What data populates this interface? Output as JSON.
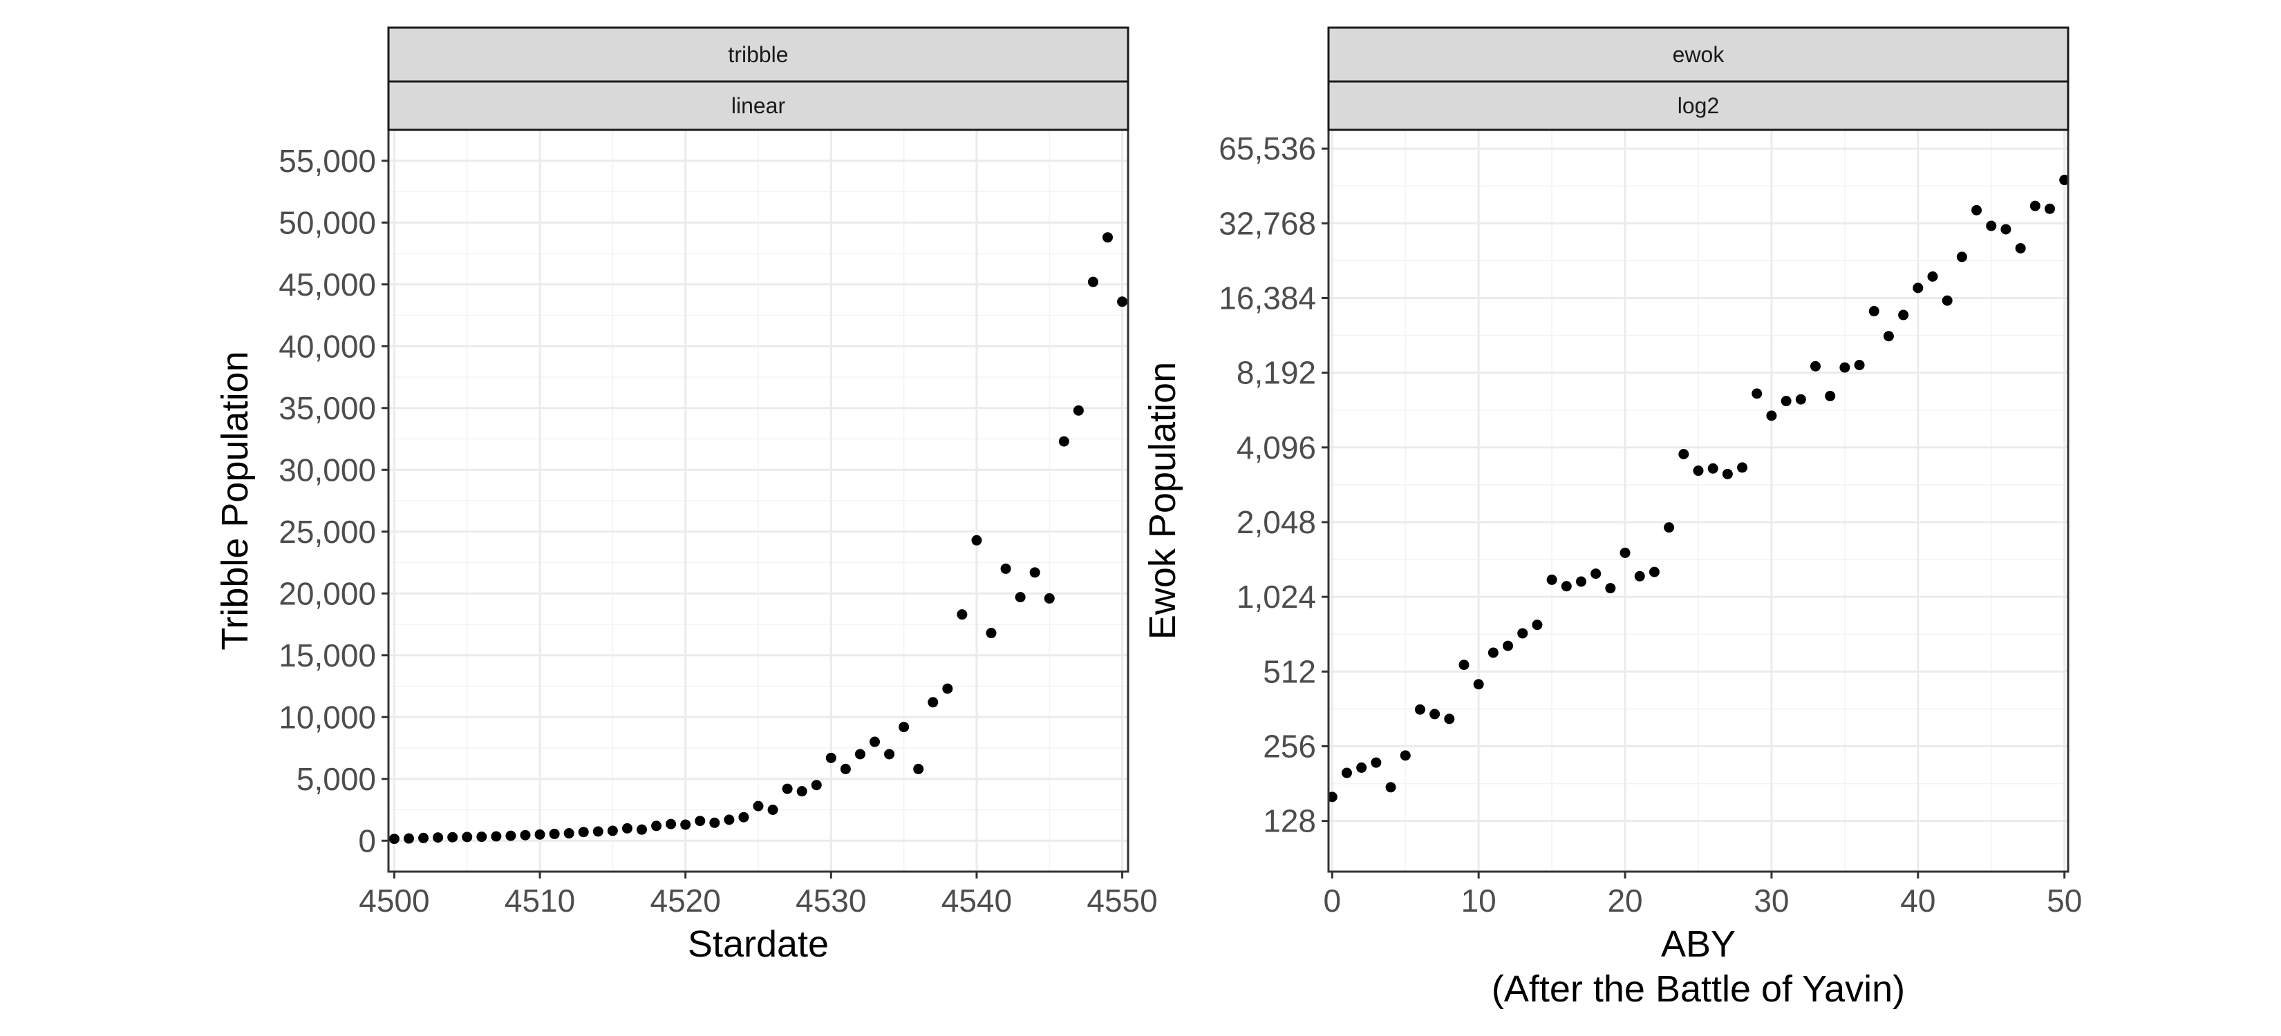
{
  "chart_data": [
    {
      "type": "scatter",
      "strip_top": "tribble",
      "strip_bottom": "linear",
      "xlabel": "Stardate",
      "ylabel": "Tribble Population",
      "y_scale": "linear",
      "xlim": [
        4499.6,
        4550.4
      ],
      "ylim": [
        -2500,
        57500
      ],
      "x_ticks": [
        4500,
        4510,
        4520,
        4530,
        4540,
        4550
      ],
      "x_tick_labels": [
        "4500",
        "4510",
        "4520",
        "4530",
        "4540",
        "4550"
      ],
      "y_ticks": [
        0,
        5000,
        10000,
        15000,
        20000,
        25000,
        30000,
        35000,
        40000,
        45000,
        50000,
        55000
      ],
      "y_tick_labels": [
        "0",
        "5,000",
        "10,000",
        "15,000",
        "20,000",
        "25,000",
        "30,000",
        "35,000",
        "40,000",
        "45,000",
        "50,000",
        "55,000"
      ],
      "grid": true,
      "x": [
        4500,
        4501,
        4502,
        4503,
        4504,
        4505,
        4506,
        4507,
        4508,
        4509,
        4510,
        4511,
        4512,
        4513,
        4514,
        4515,
        4516,
        4517,
        4518,
        4519,
        4520,
        4521,
        4522,
        4523,
        4524,
        4525,
        4526,
        4527,
        4528,
        4529,
        4530,
        4531,
        4532,
        4533,
        4534,
        4535,
        4536,
        4537,
        4538,
        4539,
        4540,
        4541,
        4542,
        4543,
        4544,
        4545,
        4546,
        4547,
        4548,
        4549,
        4550
      ],
      "y": [
        150,
        180,
        220,
        260,
        280,
        300,
        320,
        350,
        400,
        450,
        500,
        550,
        600,
        700,
        750,
        800,
        1000,
        900,
        1200,
        1350,
        1300,
        1600,
        1450,
        1700,
        1900,
        2800,
        2500,
        4200,
        4000,
        4500,
        6700,
        5800,
        7000,
        8000,
        7000,
        9200,
        5800,
        11200,
        12300,
        18300,
        24300,
        16800,
        22000,
        19700,
        21700,
        19600,
        32300,
        34800,
        45200,
        48800,
        43600
      ]
    },
    {
      "type": "scatter",
      "strip_top": "ewok",
      "strip_bottom": "log2",
      "xlabel": "ABY",
      "xlabel_line2": "(After the Battle of Yavin)",
      "ylabel": "Ewok Population",
      "y_scale": "log2",
      "xlim": [
        -0.25,
        50.25
      ],
      "ylim": [
        80,
        78000
      ],
      "x_ticks": [
        0,
        10,
        20,
        30,
        40,
        50
      ],
      "x_tick_labels": [
        "0",
        "10",
        "20",
        "30",
        "40",
        "50"
      ],
      "y_ticks": [
        128,
        256,
        512,
        1024,
        2048,
        4096,
        8192,
        16384,
        32768,
        65536
      ],
      "y_tick_labels": [
        "128",
        "256",
        "512",
        "1,024",
        "2,048",
        "4,096",
        "8,192",
        "16,384",
        "32,768",
        "65,536"
      ],
      "grid": true,
      "x": [
        0,
        1,
        2,
        3,
        4,
        5,
        6,
        7,
        8,
        9,
        10,
        11,
        12,
        13,
        14,
        15,
        16,
        17,
        18,
        19,
        20,
        21,
        22,
        23,
        24,
        25,
        26,
        27,
        28,
        29,
        30,
        31,
        32,
        33,
        34,
        35,
        36,
        37,
        38,
        39,
        40,
        41,
        42,
        43,
        44,
        45,
        46,
        47,
        48,
        49,
        50
      ],
      "y": [
        160,
        200,
        210,
        220,
        175,
        235,
        360,
        345,
        330,
        545,
        455,
        610,
        650,
        730,
        790,
        1200,
        1130,
        1180,
        1270,
        1110,
        1540,
        1240,
        1290,
        1950,
        3850,
        3300,
        3370,
        3200,
        3400,
        6750,
        5500,
        6300,
        6400,
        8700,
        6600,
        8600,
        8800,
        14500,
        11500,
        14000,
        18000,
        20000,
        16000,
        24000,
        37000,
        32000,
        31000,
        26000,
        38500,
        37500,
        49000
      ]
    }
  ]
}
